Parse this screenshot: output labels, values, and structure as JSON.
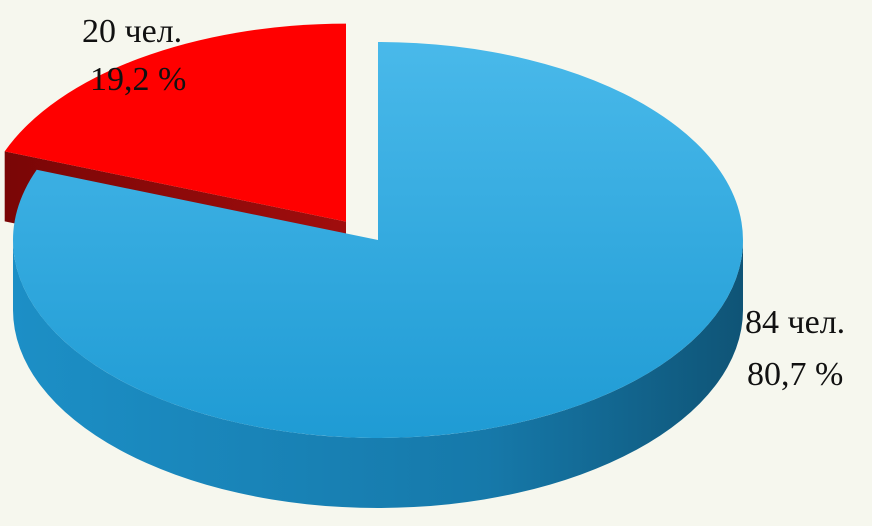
{
  "chart_data": {
    "type": "pie",
    "slices": [
      {
        "value": 84,
        "percent": 80.7,
        "count_label": "84 чел.",
        "percent_label": "80,7 %",
        "color": "#2aa5dc",
        "side_color": "#1a86b8",
        "exploded": false
      },
      {
        "value": 20,
        "percent": 19.2,
        "count_label": "20 чел.",
        "percent_label": "19,2 %",
        "color": "#ff0000",
        "side_color": "#8e0a0a",
        "exploded": true
      }
    ],
    "title": "",
    "legend": "none"
  },
  "page": {
    "background": "#f6f7ee"
  }
}
